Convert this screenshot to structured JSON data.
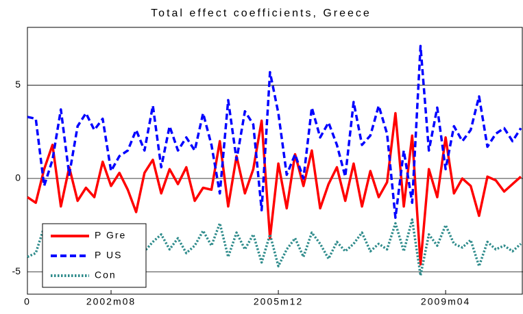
{
  "chart_data": {
    "type": "line",
    "title": "Total effect coefficients, Greece",
    "x": [
      0,
      2,
      4,
      6,
      8,
      10,
      12,
      14,
      16,
      18,
      20,
      22,
      24,
      26,
      28,
      30,
      32,
      34,
      36,
      38,
      40,
      42,
      44,
      46,
      48,
      50,
      52,
      54,
      56,
      58,
      60,
      62,
      64,
      66,
      68,
      70,
      72,
      74,
      76,
      78,
      80,
      82,
      84,
      86,
      88,
      90,
      92,
      94,
      96,
      98,
      100,
      102,
      104,
      106,
      108,
      110,
      112,
      114,
      116,
      118
    ],
    "series": [
      {
        "name": "P Gre",
        "color": "#ff0000",
        "dash": "solid",
        "values": [
          -1.0,
          -1.3,
          0.5,
          1.8,
          -1.5,
          0.6,
          -1.2,
          -0.5,
          -1.0,
          0.9,
          -0.4,
          0.3,
          -0.6,
          -1.8,
          0.3,
          1.0,
          -0.8,
          0.5,
          -0.3,
          0.6,
          -1.2,
          -0.5,
          -0.6,
          2.0,
          -1.5,
          1.2,
          -0.8,
          0.5,
          3.1,
          -3.2,
          0.8,
          -1.6,
          1.3,
          -0.4,
          1.5,
          -1.6,
          -0.3,
          0.6,
          -1.2,
          0.8,
          -1.5,
          0.4,
          -1.0,
          -0.2,
          3.5,
          -1.5,
          2.3,
          -4.6,
          0.5,
          -1.0,
          2.2,
          -0.8,
          0.0,
          -0.4,
          -2.0,
          0.1,
          -0.1,
          -0.7,
          -0.3,
          0.1
        ]
      },
      {
        "name": "P US",
        "color": "#0000ff",
        "dash": "dash",
        "values": [
          3.3,
          3.2,
          -0.4,
          1.0,
          3.7,
          0.2,
          2.8,
          3.5,
          2.6,
          3.2,
          0.4,
          1.2,
          1.5,
          2.6,
          1.5,
          3.9,
          0.6,
          2.8,
          1.5,
          2.2,
          1.5,
          3.5,
          1.8,
          -0.8,
          4.2,
          1.0,
          3.6,
          2.9,
          -1.7,
          5.7,
          3.5,
          0.2,
          1.3,
          0.0,
          3.8,
          2.2,
          3.0,
          1.8,
          0.1,
          4.1,
          1.8,
          2.3,
          3.9,
          2.4,
          -2.1,
          1.5,
          -1.3,
          7.1,
          1.5,
          3.8,
          0.5,
          2.8,
          2.0,
          2.6,
          4.4,
          1.7,
          2.4,
          2.7,
          2.0,
          2.7
        ]
      },
      {
        "name": "Con",
        "color": "#2e8b8b",
        "dash": "dot",
        "values": [
          -4.2,
          -4.0,
          -2.6,
          -3.5,
          -4.3,
          -3.5,
          -3.0,
          -4.2,
          -3.2,
          -3.8,
          -3.5,
          -3.0,
          -3.7,
          -3.3,
          -3.9,
          -3.4,
          -3.0,
          -3.8,
          -3.2,
          -4.0,
          -3.6,
          -2.8,
          -3.6,
          -2.4,
          -4.2,
          -2.9,
          -3.8,
          -3.0,
          -4.5,
          -3.0,
          -4.7,
          -3.8,
          -3.2,
          -4.2,
          -2.9,
          -3.5,
          -4.3,
          -3.4,
          -3.9,
          -3.5,
          -2.9,
          -3.9,
          -3.5,
          -3.8,
          -2.4,
          -3.9,
          -2.2,
          -5.2,
          -3.0,
          -3.6,
          -2.5,
          -3.5,
          -3.7,
          -3.3,
          -4.7,
          -3.4,
          -3.8,
          -3.6,
          -3.9,
          -3.5
        ]
      }
    ],
    "xlim": [
      0,
      118.5
    ],
    "xticks": [
      0,
      {
        "value": 20,
        "label": "2002m08"
      },
      {
        "value": 60,
        "label": "2005m12"
      },
      {
        "value": 100,
        "label": "2009m04"
      }
    ],
    "ylim": [
      -6.2,
      8.1
    ],
    "yticks": [
      -5,
      0,
      5
    ],
    "grid": true,
    "legend": "lower left"
  }
}
